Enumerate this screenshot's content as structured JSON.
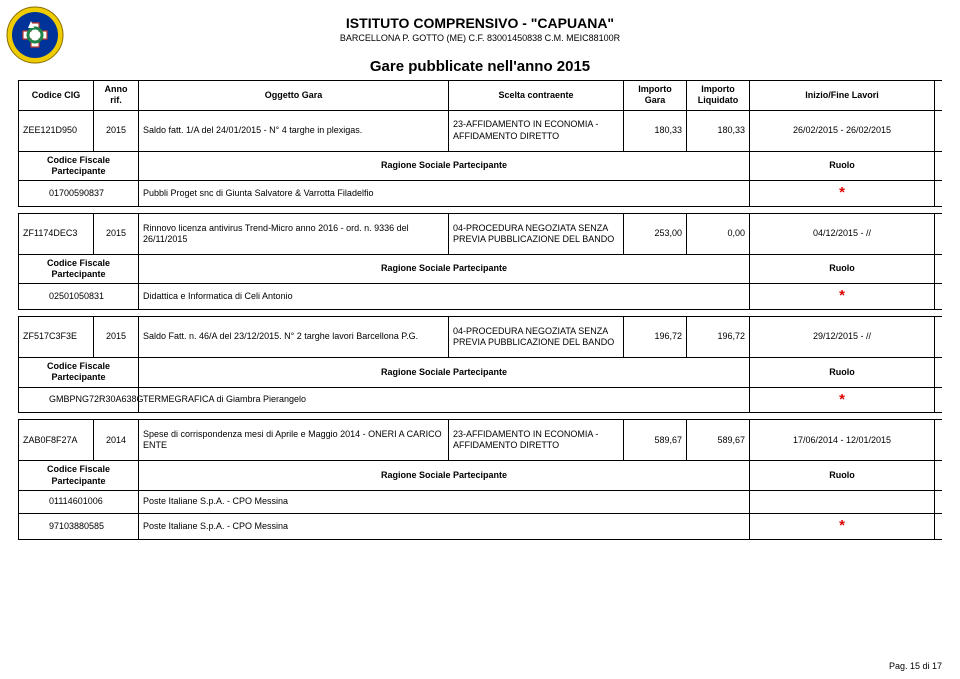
{
  "emblem_colors": {
    "outer": "#003399",
    "mid": "#eecc00",
    "inner_red": "#c0392b",
    "inner_green": "#1e8449",
    "inner_white": "#ffffff"
  },
  "header": {
    "title": "ISTITUTO COMPRENSIVO - \"CAPUANA\"",
    "subtitle": "BARCELLONA P. GOTTO (ME) C.F. 83001450838 C.M. MEIC88100R"
  },
  "page_title": "Gare pubblicate nell'anno 2015",
  "master_head": {
    "cig": "Codice CIG",
    "anno": "Anno rif.",
    "oggetto": "Oggetto Gara",
    "scelta": "Scelta contraente",
    "importo": "Importo Gara",
    "liquidato": "Importo Liquidato",
    "date": "Inizio/Fine Lavori"
  },
  "sub_head": {
    "cf": "Codice Fiscale Partecipante",
    "rag": "Ragione Sociale Partecipante",
    "ruolo": "Ruolo"
  },
  "tenders": [
    {
      "cig": "ZEE121D950",
      "anno": "2015",
      "oggetto": "Saldo fatt. 1/A del 24/01/2015 - N° 4 targhe in plexigas.",
      "scelta": "23-AFFIDAMENTO IN ECONOMIA - AFFIDAMENTO DIRETTO",
      "importo": "180,33",
      "liquidato": "180,33",
      "date": "26/02/2015 - 26/02/2015",
      "participants": [
        {
          "cf": "01700590837",
          "rag": "Pubbli Proget snc di Giunta Salvatore & Varrotta Filadelfio",
          "ruolo": "*"
        }
      ]
    },
    {
      "cig": "ZF1174DEC3",
      "anno": "2015",
      "oggetto": "Rinnovo licenza antivirus Trend-Micro anno 2016 - ord. n. 9336 del 26/11/2015",
      "scelta": "04-PROCEDURA NEGOZIATA SENZA PREVIA PUBBLICAZIONE DEL BANDO",
      "importo": "253,00",
      "liquidato": "0,00",
      "date": "04/12/2015 -      //",
      "participants": [
        {
          "cf": "02501050831",
          "rag": "Didattica e Informatica di Celi Antonio",
          "ruolo": "*"
        }
      ]
    },
    {
      "cig": "ZF517C3F3E",
      "anno": "2015",
      "oggetto": "Saldo Fatt. n. 46/A del 23/12/2015. N° 2 targhe lavori Barcellona P.G.",
      "scelta": "04-PROCEDURA NEGOZIATA SENZA PREVIA PUBBLICAZIONE DEL BANDO",
      "importo": "196,72",
      "liquidato": "196,72",
      "date": "29/12/2015 -      //",
      "participants": [
        {
          "cf": "GMBPNG72R30A638G",
          "rag": "TERMEGRAFICA di Giambra Pierangelo",
          "ruolo": "*"
        }
      ]
    },
    {
      "cig": "ZAB0F8F27A",
      "anno": "2014",
      "oggetto": "Spese di corrispondenza mesi di Aprile e Maggio 2014 - ONERI A CARICO ENTE",
      "scelta": "23-AFFIDAMENTO IN ECONOMIA - AFFIDAMENTO DIRETTO",
      "importo": "589,67",
      "liquidato": "589,67",
      "date": "17/06/2014 - 12/01/2015",
      "participants": [
        {
          "cf": "01114601006",
          "rag": "Poste Italiane S.p.A. - CPO Messina",
          "ruolo": ""
        },
        {
          "cf": "97103880585",
          "rag": "Poste Italiane S.p.A. - CPO Messina",
          "ruolo": "*"
        }
      ]
    }
  ],
  "footer": "Pag. 15 di 17"
}
